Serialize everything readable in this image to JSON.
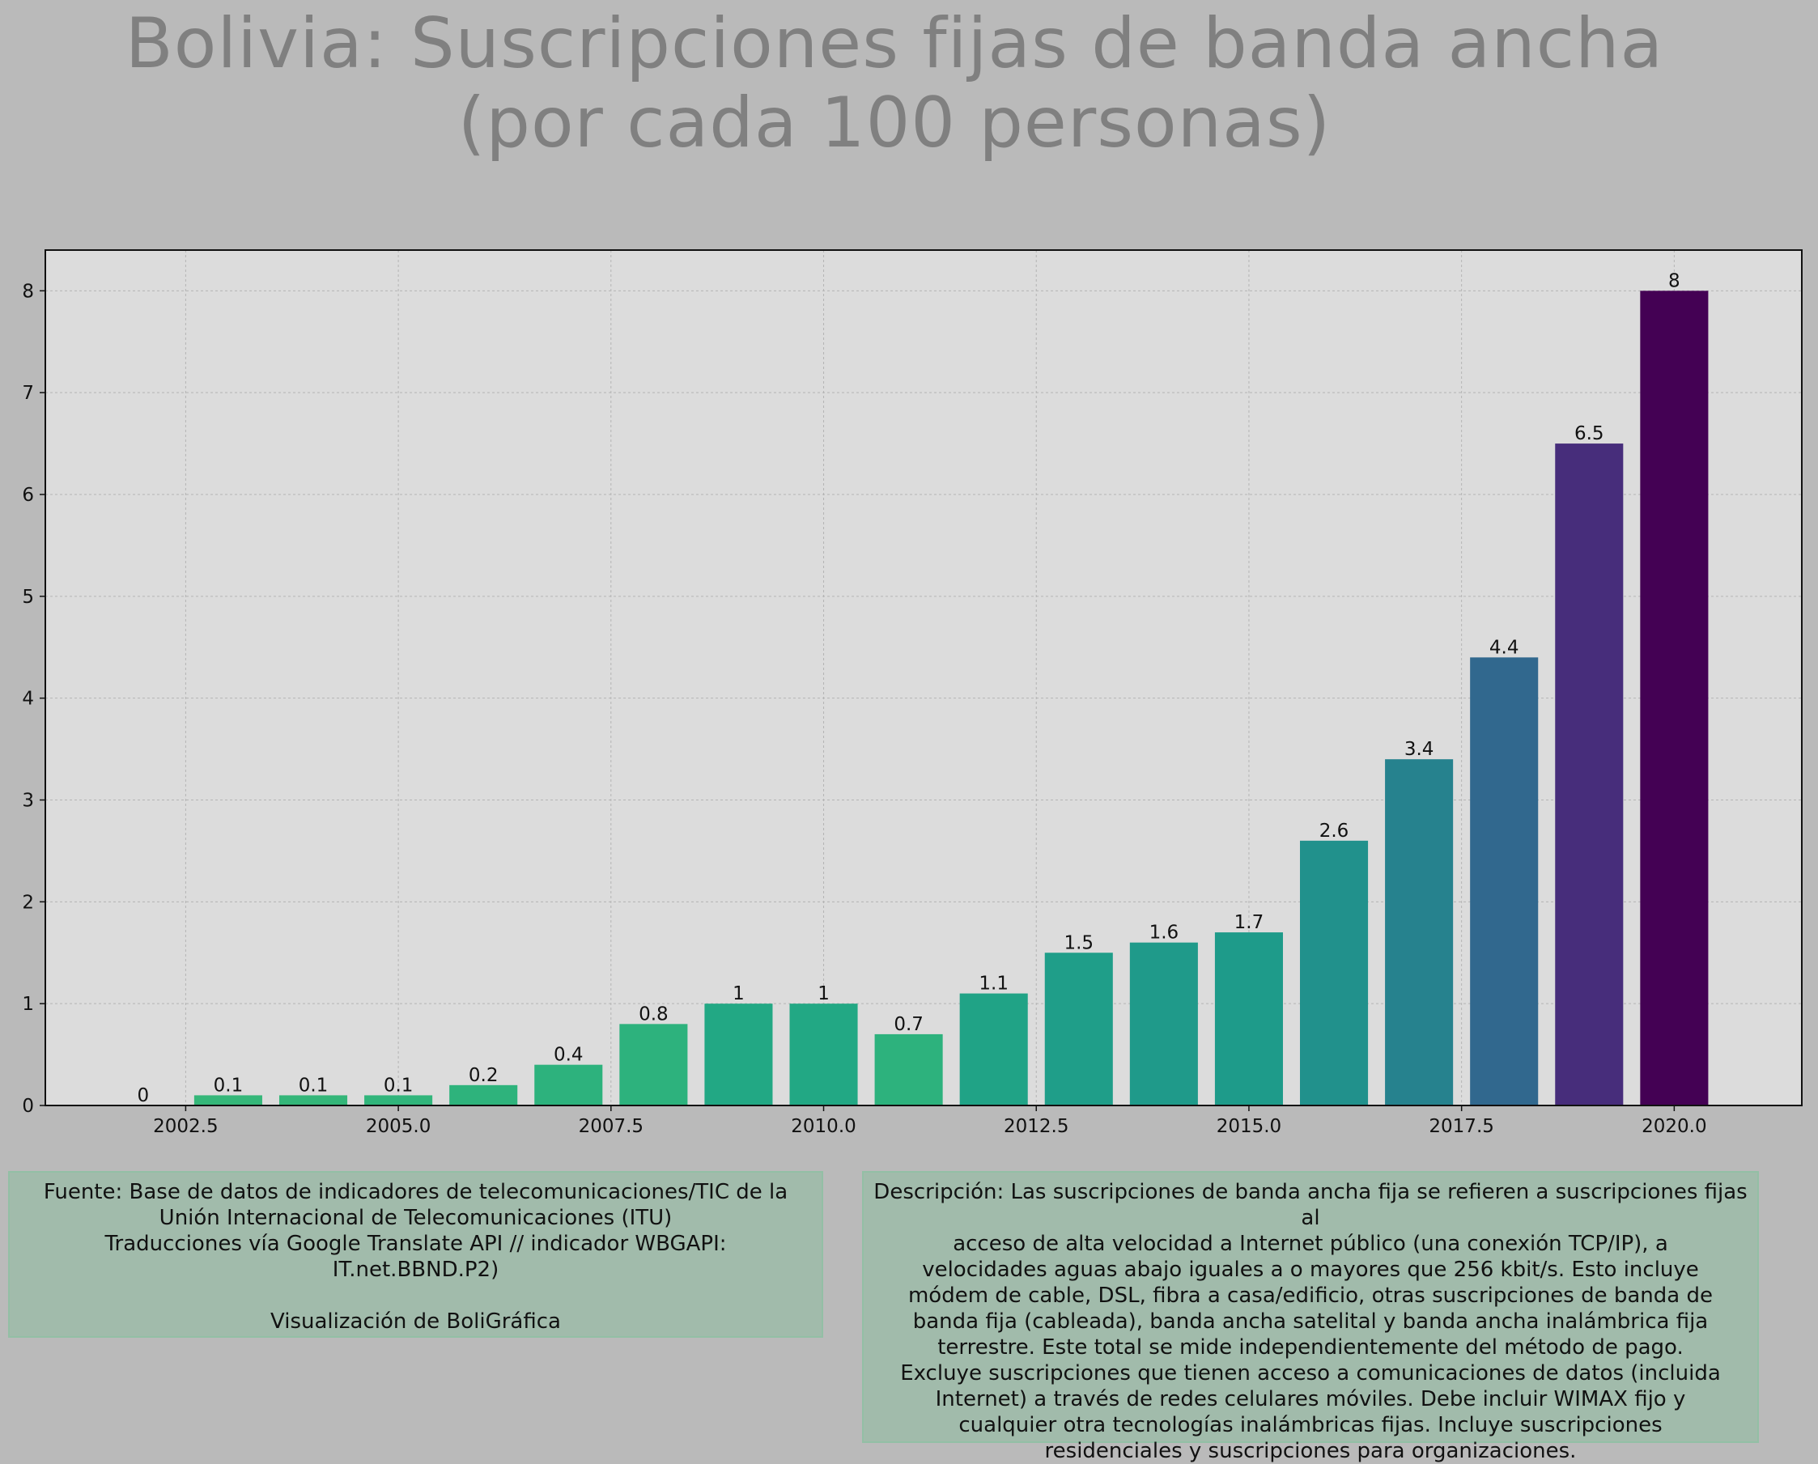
{
  "title": "Bolivia:  Suscripciones fijas de banda ancha (por cada 100 personas)",
  "chart_data": {
    "type": "bar",
    "title": "Bolivia:  Suscripciones fijas de banda ancha (por cada 100 personas)",
    "xlabel": "",
    "ylabel": "",
    "x": [
      2002,
      2003,
      2004,
      2005,
      2006,
      2007,
      2008,
      2009,
      2010,
      2011,
      2012,
      2013,
      2014,
      2015,
      2016,
      2017,
      2018,
      2019,
      2020
    ],
    "values": [
      0,
      0.1,
      0.1,
      0.1,
      0.2,
      0.4,
      0.8,
      1,
      1,
      0.7,
      1.1,
      1.5,
      1.6,
      1.7,
      2.6,
      3.4,
      4.4,
      6.5,
      8
    ],
    "value_labels": [
      "0",
      "0.1",
      "0.1",
      "0.1",
      "0.2",
      "0.4",
      "0.8",
      "1",
      "1",
      "0.7",
      "1.1",
      "1.5",
      "1.6",
      "1.7",
      "2.6",
      "3.4",
      "4.4",
      "6.5",
      "8"
    ],
    "xlim": [
      2000.85,
      2021.5
    ],
    "ylim": [
      0,
      8.4
    ],
    "xticks": [
      2002.5,
      2005.0,
      2007.5,
      2010.0,
      2012.5,
      2015.0,
      2017.5,
      2020.0
    ],
    "xtick_labels": [
      "2002.5",
      "2005.0",
      "2007.5",
      "2010.0",
      "2012.5",
      "2015.0",
      "2017.5",
      "2020.0"
    ],
    "yticks": [
      0,
      1,
      2,
      3,
      4,
      5,
      6,
      7,
      8
    ],
    "ytick_labels": [
      "0",
      "1",
      "2",
      "3",
      "4",
      "5",
      "6",
      "7",
      "8"
    ],
    "grid": true,
    "colormap": "viridis_r",
    "colors": [
      "#35b779",
      "#35b779",
      "#34b679",
      "#31b57b",
      "#2eb37c",
      "#2db27d",
      "#2db27d",
      "#22a884",
      "#22a884",
      "#2db27d",
      "#20a386",
      "#1f9e89",
      "#1f9a8a",
      "#1e9b8a",
      "#21918c",
      "#26828e",
      "#31688e",
      "#472d7b",
      "#440154"
    ],
    "plot_background": "#dcdcdc",
    "figure_background": "#bababa"
  },
  "source_box": {
    "lines": [
      "Fuente: Base de datos de indicadores de telecomunicaciones/TIC de la",
      "Unión Internacional de Telecomunicaciones (ITU)",
      "Traducciones vía Google Translate API // indicador WBGAPI:",
      "IT.net.BBND.P2)",
      "",
      "Visualización de BoliGráfica"
    ]
  },
  "description_box": {
    "lines": [
      "Descripción: Las suscripciones de banda ancha fija se refieren a suscripciones fijas al",
      "acceso de alta velocidad a Internet público (una conexión TCP/IP), a",
      "velocidades aguas abajo iguales a o mayores que 256 kbit/s. Esto incluye",
      "módem de cable, DSL, fibra a casa/edificio, otras suscripciones de banda de",
      "banda fija (cableada), banda ancha satelital y banda ancha inalámbrica fija",
      "terrestre. Este total se mide independientemente del método de pago.",
      "Excluye suscripciones que tienen acceso a comunicaciones de datos (incluida",
      "Internet) a través de redes celulares móviles. Debe incluir WIMAX fijo y",
      "cualquier otra tecnologías inalámbricas fijas. Incluye suscripciones",
      "residenciales y suscripciones para organizaciones."
    ]
  }
}
